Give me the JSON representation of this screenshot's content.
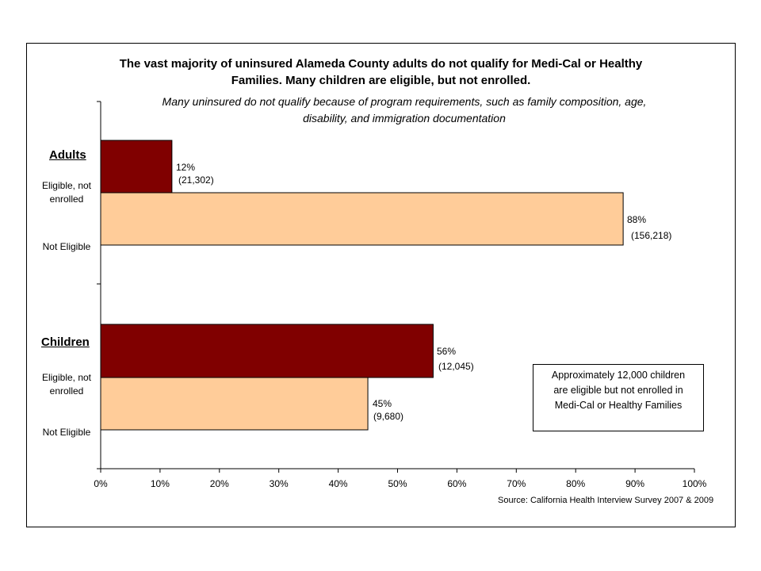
{
  "chart_data": {
    "type": "bar",
    "orientation": "horizontal",
    "title": [
      "The vast majority of uninsured Alameda County adults do not qualify for Medi-Cal or Healthy",
      "Families.  Many children are eligible, but not enrolled."
    ],
    "subtitle": [
      "Many uninsured do not qualify because of program requirements, such as family composition, age,",
      "disability, and immigration documentation"
    ],
    "xlim": [
      0,
      100
    ],
    "xticks": [
      "0%",
      "10%",
      "20%",
      "30%",
      "40%",
      "50%",
      "60%",
      "70%",
      "80%",
      "90%",
      "100%"
    ],
    "grid": false,
    "groups": [
      {
        "name": "Adults",
        "bars": [
          {
            "label": [
              "Eligible, not",
              "enrolled"
            ],
            "value": 12,
            "pct_label": "12%",
            "count_label": "(21,302)",
            "color": "#800000"
          },
          {
            "label": [
              "Not Eligible"
            ],
            "value": 88,
            "pct_label": "88%",
            "count_label": "(156,218)",
            "color": "#ffcc99"
          }
        ]
      },
      {
        "name": "Children",
        "bars": [
          {
            "label": [
              "Eligible, not",
              "enrolled"
            ],
            "value": 56,
            "pct_label": "56%",
            "count_label": "(12,045)",
            "color": "#800000"
          },
          {
            "label": [
              "Not Eligible"
            ],
            "value": 45,
            "pct_label": "45%",
            "count_label": "(9,680)",
            "color": "#ffcc99"
          }
        ]
      }
    ],
    "annotation": [
      "Approximately 12,000 children",
      "are eligible but not enrolled in",
      "Medi-Cal or Healthy Families"
    ],
    "source": "Source: California Health Interview Survey 2007 & 2009"
  }
}
